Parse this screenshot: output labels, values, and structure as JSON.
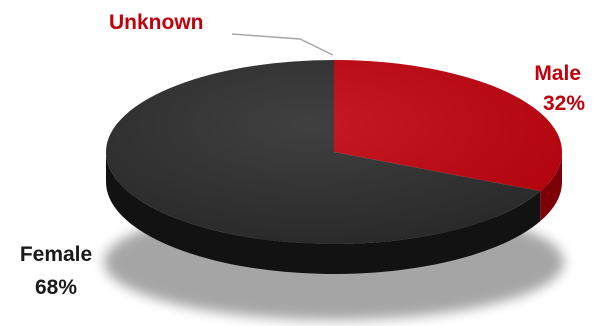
{
  "chart_data": {
    "type": "pie",
    "style": "3d",
    "slices": [
      {
        "label": "Male",
        "value": 32,
        "value_label": "32%",
        "color": "#c0000b",
        "side_color": "#7d0008"
      },
      {
        "label": "Female",
        "value": 68,
        "value_label": "68%",
        "color": "#2b2b2b",
        "side_color": "#121212"
      },
      {
        "label": "Unknown",
        "value": 0,
        "value_label": "",
        "color": "#a0a0a0",
        "side_color": "#808080"
      }
    ],
    "label_colors": {
      "Male": "#c0000b",
      "Female": "#1a1a1a",
      "Unknown": "#c0000b"
    }
  }
}
